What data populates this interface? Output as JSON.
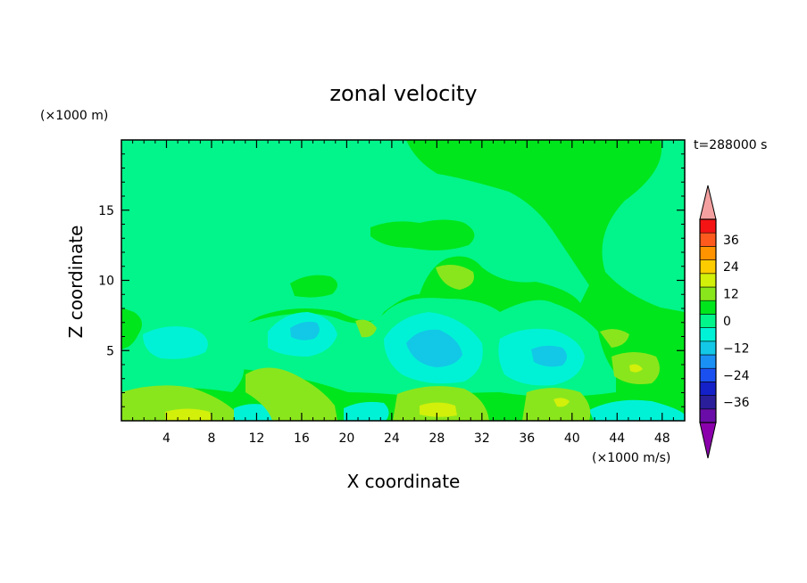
{
  "chart_data": {
    "type": "heatmap",
    "title": "zonal velocity",
    "xlabel": "X coordinate",
    "ylabel": "Z coordinate",
    "x_units": "(×1000 m/s)",
    "y_units": "(×1000 m)",
    "time_label": "t=288000 s",
    "xlim": [
      0,
      50
    ],
    "ylim": [
      0,
      20
    ],
    "x_ticks": [
      "4",
      "8",
      "12",
      "16",
      "20",
      "24",
      "28",
      "32",
      "36",
      "40",
      "44",
      "48"
    ],
    "y_ticks": [
      "5",
      "10",
      "15"
    ],
    "colorbar": {
      "levels": [
        -42,
        -36,
        -30,
        -24,
        -18,
        -12,
        -6,
        0,
        6,
        12,
        18,
        24,
        30,
        36,
        42
      ],
      "tick_labels": [
        "36",
        "24",
        "12",
        "0",
        "−12",
        "−24",
        "−36"
      ],
      "colors": [
        "#6a0da8",
        "#2a1e9a",
        "#1420c8",
        "#1a50f0",
        "#1a90f5",
        "#12c8e6",
        "#00f2d6",
        "#02f58a",
        "#00e61c",
        "#8ae61c",
        "#d2f00a",
        "#fccc00",
        "#ff9400",
        "#ff5a1e",
        "#f51414"
      ],
      "under_color": "#8a00ab",
      "over_color": "#f5a0a0"
    },
    "regions": [
      {
        "level": -6,
        "note": "broad background 0 to −6 band"
      },
      {
        "level": 3,
        "note": "upper right 0–6 region"
      },
      {
        "level": -12,
        "note": "lower cores near x≈16, 28, 38"
      },
      {
        "level": 9,
        "note": "bottom positive strips"
      }
    ]
  }
}
